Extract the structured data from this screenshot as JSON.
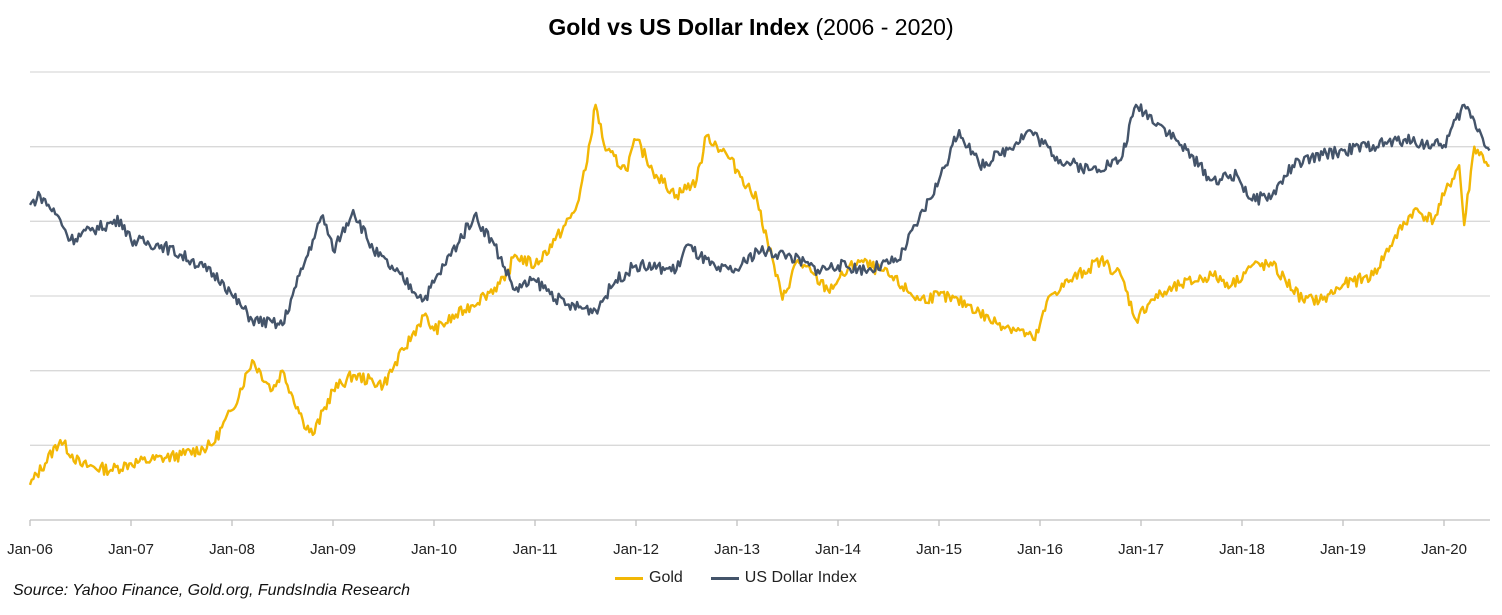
{
  "chart_data": {
    "type": "line",
    "title": "Gold vs US Dollar Index",
    "title_suffix": "(2006 - 2020)",
    "xlabel": "",
    "ylabel": "",
    "y_axis_labels_shown": false,
    "ylim": [
      0,
      6
    ],
    "xlim": [
      2006.0,
      2020.45
    ],
    "grid": true,
    "legend_position": "bottom",
    "x_ticks": [
      {
        "value": 2006,
        "label": "Jan-06"
      },
      {
        "value": 2007,
        "label": "Jan-07"
      },
      {
        "value": 2008,
        "label": "Jan-08"
      },
      {
        "value": 2009,
        "label": "Jan-09"
      },
      {
        "value": 2010,
        "label": "Jan-10"
      },
      {
        "value": 2011,
        "label": "Jan-11"
      },
      {
        "value": 2012,
        "label": "Jan-12"
      },
      {
        "value": 2013,
        "label": "Jan-13"
      },
      {
        "value": 2014,
        "label": "Jan-14"
      },
      {
        "value": 2015,
        "label": "Jan-15"
      },
      {
        "value": 2016,
        "label": "Jan-16"
      },
      {
        "value": 2017,
        "label": "Jan-17"
      },
      {
        "value": 2018,
        "label": "Jan-18"
      },
      {
        "value": 2019,
        "label": "Jan-19"
      },
      {
        "value": 2020,
        "label": "Jan-20"
      }
    ],
    "series": [
      {
        "name": "Gold",
        "color": "#F2B705",
        "x": [
          2006.0,
          2006.3,
          2006.5,
          2006.8,
          2007.0,
          2007.5,
          2007.8,
          2008.0,
          2008.2,
          2008.4,
          2008.5,
          2008.7,
          2008.8,
          2009.0,
          2009.2,
          2009.5,
          2009.7,
          2009.9,
          2010.0,
          2010.3,
          2010.5,
          2010.7,
          2010.8,
          2011.0,
          2011.2,
          2011.4,
          2011.5,
          2011.6,
          2011.7,
          2011.9,
          2012.0,
          2012.2,
          2012.4,
          2012.6,
          2012.7,
          2012.9,
          2013.0,
          2013.2,
          2013.3,
          2013.45,
          2013.6,
          2013.9,
          2014.0,
          2014.2,
          2014.5,
          2014.8,
          2015.0,
          2015.3,
          2015.5,
          2015.8,
          2015.95,
          2016.1,
          2016.3,
          2016.6,
          2016.8,
          2016.95,
          2017.1,
          2017.4,
          2017.7,
          2017.9,
          2018.1,
          2018.3,
          2018.6,
          2018.8,
          2019.0,
          2019.3,
          2019.5,
          2019.7,
          2019.9,
          2020.0,
          2020.15,
          2020.2,
          2020.3,
          2020.45
        ],
        "values": [
          0.47,
          1.07,
          0.74,
          0.67,
          0.76,
          0.87,
          1.0,
          1.47,
          2.14,
          1.74,
          2.0,
          1.34,
          1.14,
          1.74,
          1.94,
          1.81,
          2.28,
          2.74,
          2.54,
          2.81,
          3.01,
          3.21,
          3.55,
          3.41,
          3.75,
          4.15,
          4.69,
          5.56,
          4.95,
          4.69,
          5.09,
          4.62,
          4.35,
          4.55,
          5.15,
          4.89,
          4.69,
          4.28,
          3.75,
          2.95,
          3.48,
          3.08,
          3.21,
          3.48,
          3.28,
          2.95,
          3.01,
          2.88,
          2.68,
          2.54,
          2.41,
          3.01,
          3.21,
          3.48,
          3.28,
          2.68,
          2.95,
          3.15,
          3.28,
          3.15,
          3.41,
          3.41,
          2.95,
          2.95,
          3.15,
          3.28,
          3.75,
          4.15,
          4.02,
          4.35,
          4.75,
          3.95,
          5.0,
          4.75
        ]
      },
      {
        "name": "US Dollar Index",
        "color": "#44546A",
        "x": [
          2006.0,
          2006.1,
          2006.3,
          2006.4,
          2006.6,
          2006.9,
          2007.0,
          2007.3,
          2007.6,
          2007.9,
          2008.0,
          2008.2,
          2008.5,
          2008.6,
          2008.8,
          2008.9,
          2009.0,
          2009.2,
          2009.4,
          2009.6,
          2009.9,
          2010.1,
          2010.4,
          2010.6,
          2010.8,
          2011.0,
          2011.3,
          2011.6,
          2011.8,
          2012.0,
          2012.4,
          2012.5,
          2012.8,
          2013.0,
          2013.2,
          2013.5,
          2013.8,
          2014.0,
          2014.3,
          2014.6,
          2014.8,
          2015.0,
          2015.2,
          2015.4,
          2015.6,
          2015.9,
          2016.2,
          2016.5,
          2016.8,
          2016.95,
          2017.2,
          2017.4,
          2017.7,
          2017.95,
          2018.1,
          2018.3,
          2018.5,
          2018.8,
          2019.0,
          2019.3,
          2019.6,
          2019.9,
          2020.0,
          2020.2,
          2020.3,
          2020.45
        ],
        "values": [
          4.22,
          4.35,
          4.02,
          3.75,
          3.88,
          4.02,
          3.75,
          3.68,
          3.48,
          3.21,
          3.01,
          2.68,
          2.61,
          3.01,
          3.75,
          4.08,
          3.61,
          4.15,
          3.61,
          3.35,
          2.95,
          3.41,
          4.08,
          3.68,
          3.08,
          3.21,
          2.88,
          2.81,
          3.21,
          3.41,
          3.35,
          3.68,
          3.35,
          3.35,
          3.61,
          3.55,
          3.35,
          3.41,
          3.35,
          3.48,
          4.02,
          4.55,
          5.22,
          4.75,
          4.89,
          5.22,
          4.82,
          4.69,
          4.82,
          5.56,
          5.29,
          5.02,
          4.55,
          4.62,
          4.28,
          4.35,
          4.75,
          4.89,
          4.95,
          5.02,
          5.09,
          5.02,
          5.02,
          5.56,
          5.35,
          4.95
        ]
      }
    ]
  },
  "source": "Source: Yahoo Finance, Gold.org, FundsIndia Research"
}
